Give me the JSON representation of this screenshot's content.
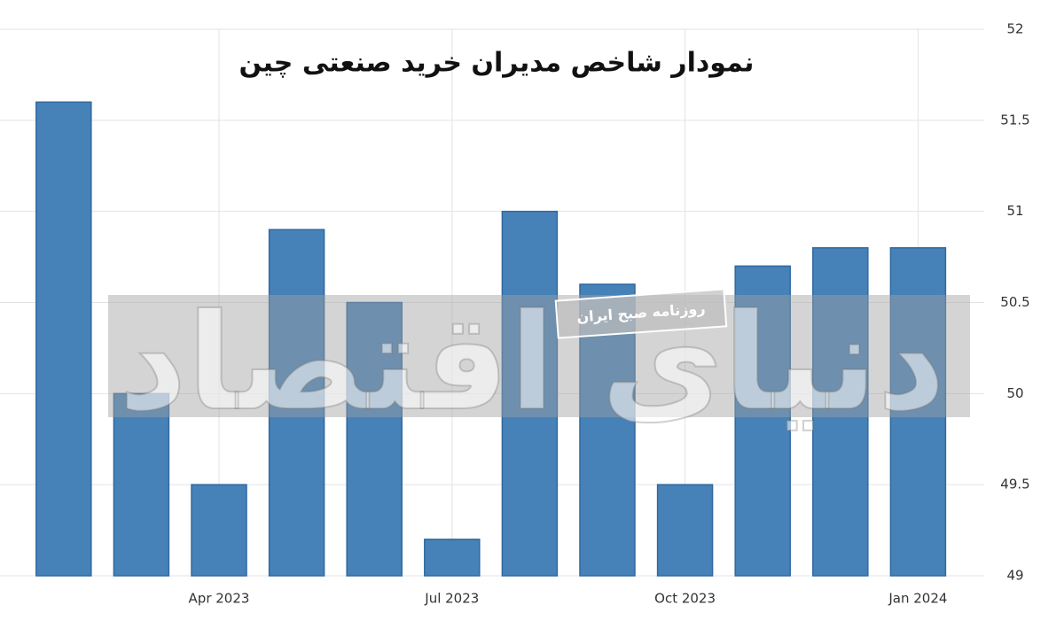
{
  "chart_data": {
    "type": "bar",
    "title": "نمودار شاخص مدیران خرید صنعتی چین",
    "categories": [
      null,
      null,
      "Apr 2023",
      null,
      null,
      "Jul 2023",
      null,
      null,
      "Oct 2023",
      null,
      null,
      "Jan 2024"
    ],
    "values": [
      51.6,
      50.0,
      49.5,
      50.9,
      50.5,
      49.2,
      51.0,
      50.6,
      49.5,
      50.7,
      50.8,
      50.8
    ],
    "color": "#4682b8",
    "ylim": [
      49,
      52
    ],
    "yticks": [
      49,
      49.5,
      50,
      50.5,
      51,
      51.5,
      52
    ],
    "grid": true
  },
  "watermark": {
    "small": "روزنامه صبح ایران",
    "big": "دنیای اقتصاد"
  }
}
